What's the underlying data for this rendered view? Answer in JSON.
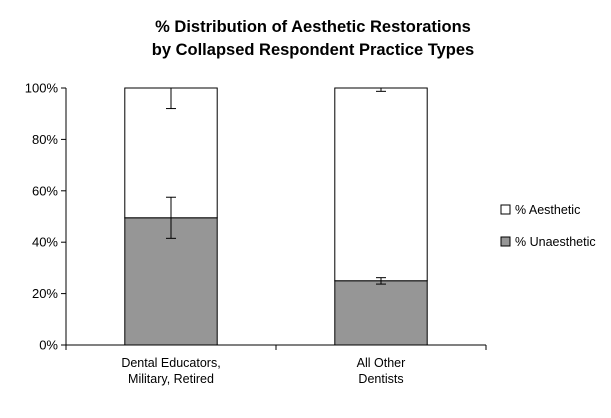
{
  "chart_data": {
    "type": "bar",
    "stacked": true,
    "percent_stacked": true,
    "title": [
      "% Distribution of Aesthetic Restorations",
      "by Collapsed Respondent Practice Types"
    ],
    "categories": [
      [
        "Dental Educators,",
        "Military, Retired"
      ],
      [
        "All Other",
        "Dentists"
      ]
    ],
    "series": [
      {
        "name": "% Unaesthetic",
        "color": "#969696",
        "values": [
          49.5,
          25.0
        ],
        "error": [
          [
            41.5,
            57.5
          ],
          [
            23.7,
            26.2
          ]
        ]
      },
      {
        "name": "% Aesthetic",
        "color": "#ffffff",
        "values": [
          50.5,
          75.0
        ],
        "error": [
          [
            92.0,
            100.0
          ],
          [
            98.7,
            100.0
          ]
        ]
      }
    ],
    "ylim": [
      0,
      100
    ],
    "yticks": [
      "0%",
      "20%",
      "40%",
      "60%",
      "80%",
      "100%"
    ],
    "xlabel": "",
    "ylabel": "",
    "grid": false,
    "legend_position": "right",
    "legend_order": [
      "% Aesthetic",
      "% Unaesthetic"
    ]
  }
}
